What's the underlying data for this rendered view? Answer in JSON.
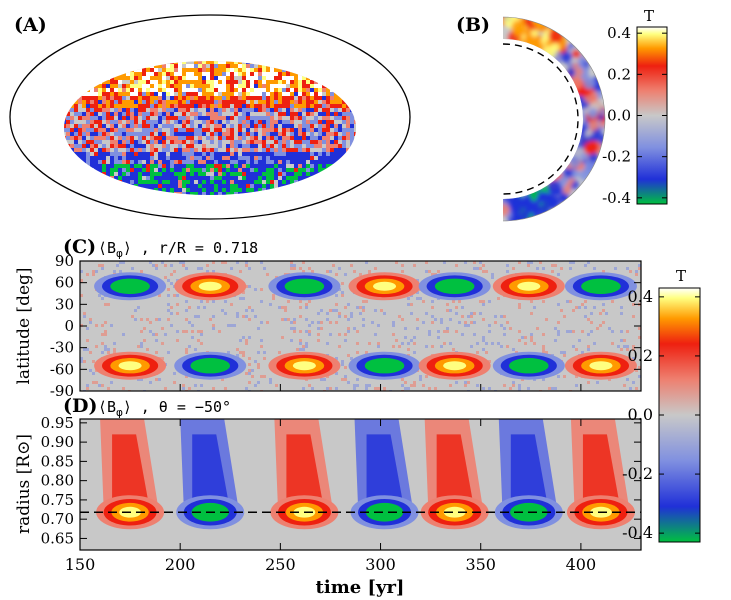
{
  "panels": {
    "a": {
      "label": "(A)"
    },
    "b": {
      "label": "(B)"
    },
    "c": {
      "label": "(C)",
      "title": "⟨B",
      "title_sub": "φ",
      "title_rest": "⟩ , r/R = 0.718"
    },
    "d": {
      "label": "(D)",
      "title": "⟨B",
      "title_sub": "φ",
      "title_rest": "⟩ , θ = −50°"
    }
  },
  "colorbar_top": {
    "unit": "T",
    "ticks": [
      "0.4",
      "0.2",
      "0.0",
      "-0.2",
      "-0.4"
    ]
  },
  "colorbar_bottom": {
    "unit": "T",
    "ticks": [
      "0.4",
      "0.2",
      "0.0",
      "-0.2",
      "-0.4"
    ]
  },
  "colormap": [
    "#00c040",
    "#2030d8",
    "#8090e0",
    "#c8c8c8",
    "#ee8070",
    "#ee2010",
    "#ff9a00",
    "#ffff80",
    "#ffffff"
  ],
  "chart_data": [
    {
      "type": "heatmap",
      "panel": "C",
      "ylabel": "latitude [deg]",
      "yticks": [
        "90",
        "60",
        "30",
        "0",
        "-30",
        "-60",
        "-90"
      ],
      "ylim": [
        -90,
        90
      ],
      "xlim": [
        150,
        430
      ],
      "cycle_centers_yr": [
        175,
        215,
        262,
        302,
        337,
        374,
        410
      ],
      "north_polarity": [
        -1,
        1,
        -1,
        1,
        -1,
        1,
        -1
      ],
      "south_polarity": [
        1,
        -1,
        1,
        -1,
        1,
        -1,
        1
      ]
    },
    {
      "type": "heatmap",
      "panel": "D",
      "xlabel": "time [yr]",
      "ylabel": "radius [R⊙]",
      "yticks": [
        "0.95",
        "0.90",
        "0.85",
        "0.80",
        "0.75",
        "0.70",
        "0.65"
      ],
      "xticks": [
        "150",
        "200",
        "250",
        "300",
        "350",
        "400"
      ],
      "ylim": [
        0.62,
        0.96
      ],
      "xlim": [
        150,
        430
      ],
      "tachocline_r": 0.718,
      "cycle_centers_yr": [
        175,
        215,
        262,
        302,
        337,
        374,
        410
      ],
      "polarity": [
        1,
        -1,
        1,
        -1,
        1,
        -1,
        1
      ]
    }
  ]
}
